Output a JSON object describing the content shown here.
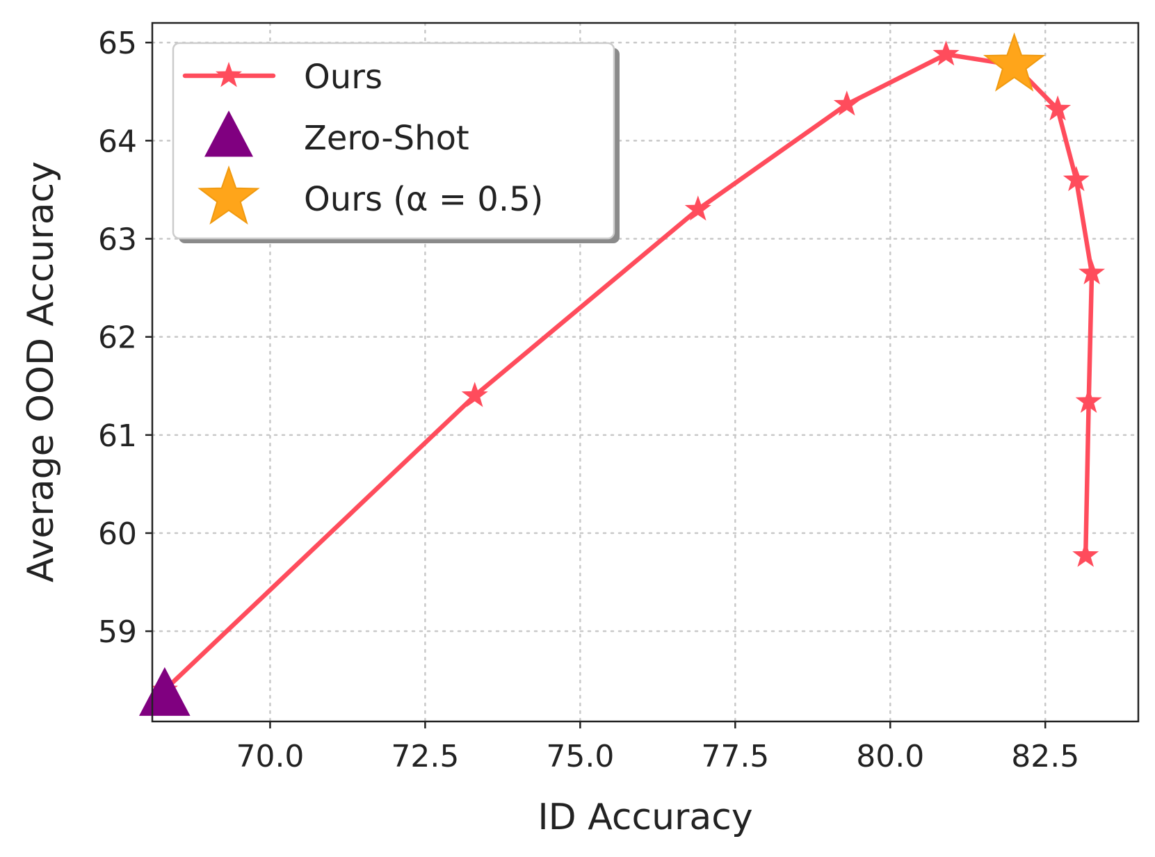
{
  "chart_data": {
    "type": "line",
    "xlabel": "ID Accuracy",
    "ylabel": "Average OOD Accuracy",
    "xlim": [
      68.1,
      84.0
    ],
    "ylim": [
      58.08,
      65.2
    ],
    "x_ticks": [
      70.0,
      72.5,
      75.0,
      77.5,
      80.0,
      82.5
    ],
    "x_tick_labels": [
      "70.0",
      "72.5",
      "75.0",
      "77.5",
      "80.0",
      "82.5"
    ],
    "y_ticks": [
      59,
      60,
      61,
      62,
      63,
      64,
      65
    ],
    "y_tick_labels": [
      "59",
      "60",
      "61",
      "62",
      "63",
      "64",
      "65"
    ],
    "grid": true,
    "legend_position": "top-left",
    "series": [
      {
        "name": "Ours",
        "marker": "star",
        "color": "#ff4c5c",
        "points": [
          {
            "x": 68.3,
            "y": 58.4
          },
          {
            "x": 73.3,
            "y": 61.4
          },
          {
            "x": 76.9,
            "y": 63.3
          },
          {
            "x": 79.3,
            "y": 64.37
          },
          {
            "x": 80.9,
            "y": 64.88
          },
          {
            "x": 82.0,
            "y": 64.77
          },
          {
            "x": 82.7,
            "y": 64.32
          },
          {
            "x": 83.0,
            "y": 63.6
          },
          {
            "x": 83.25,
            "y": 62.65
          },
          {
            "x": 83.2,
            "y": 61.34
          },
          {
            "x": 83.15,
            "y": 59.77
          }
        ]
      },
      {
        "name": "Zero-Shot",
        "marker": "triangle",
        "color": "#800080",
        "points": [
          {
            "x": 68.3,
            "y": 58.35
          }
        ]
      },
      {
        "name": "Ours (α = 0.5)",
        "marker": "star",
        "color": "#ffa51a",
        "points": [
          {
            "x": 82.0,
            "y": 64.77
          }
        ]
      }
    ]
  }
}
